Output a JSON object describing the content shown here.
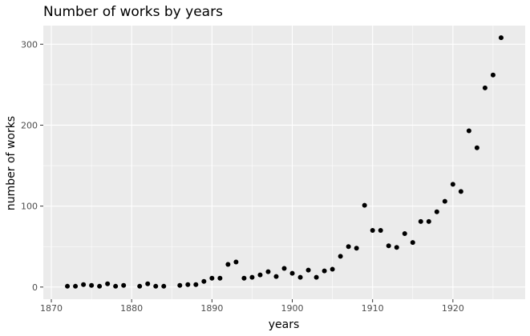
{
  "chart_data": {
    "type": "scatter",
    "title": "Number of works by years",
    "xlabel": "years",
    "ylabel": "number of works",
    "xlim": [
      1869,
      1929
    ],
    "ylim": [
      -15,
      323
    ],
    "x_ticks": [
      1870,
      1880,
      1890,
      1900,
      1910,
      1920
    ],
    "y_ticks": [
      0,
      100,
      200,
      300
    ],
    "x_tick_labels": [
      "1870",
      "1880",
      "1890",
      "1900",
      "1910",
      "1920"
    ],
    "y_tick_labels": [
      "0",
      "100",
      "200",
      "300"
    ],
    "grid": true,
    "legend": "none",
    "colors": {
      "panel": "#ebebeb",
      "grid": "#ffffff",
      "point": "#000000"
    },
    "points": [
      {
        "x": 1872,
        "y": 1
      },
      {
        "x": 1873,
        "y": 1
      },
      {
        "x": 1874,
        "y": 3
      },
      {
        "x": 1875,
        "y": 2
      },
      {
        "x": 1876,
        "y": 1
      },
      {
        "x": 1877,
        "y": 4
      },
      {
        "x": 1878,
        "y": 1
      },
      {
        "x": 1879,
        "y": 2
      },
      {
        "x": 1881,
        "y": 1
      },
      {
        "x": 1882,
        "y": 4
      },
      {
        "x": 1883,
        "y": 1
      },
      {
        "x": 1884,
        "y": 1
      },
      {
        "x": 1886,
        "y": 2
      },
      {
        "x": 1887,
        "y": 3
      },
      {
        "x": 1888,
        "y": 3
      },
      {
        "x": 1889,
        "y": 7
      },
      {
        "x": 1890,
        "y": 11
      },
      {
        "x": 1891,
        "y": 11
      },
      {
        "x": 1892,
        "y": 28
      },
      {
        "x": 1893,
        "y": 31
      },
      {
        "x": 1894,
        "y": 11
      },
      {
        "x": 1895,
        "y": 12
      },
      {
        "x": 1896,
        "y": 15
      },
      {
        "x": 1897,
        "y": 19
      },
      {
        "x": 1898,
        "y": 13
      },
      {
        "x": 1899,
        "y": 23
      },
      {
        "x": 1900,
        "y": 17
      },
      {
        "x": 1901,
        "y": 12
      },
      {
        "x": 1902,
        "y": 21
      },
      {
        "x": 1903,
        "y": 12
      },
      {
        "x": 1904,
        "y": 20
      },
      {
        "x": 1905,
        "y": 22
      },
      {
        "x": 1906,
        "y": 38
      },
      {
        "x": 1907,
        "y": 50
      },
      {
        "x": 1908,
        "y": 48
      },
      {
        "x": 1909,
        "y": 101
      },
      {
        "x": 1910,
        "y": 70
      },
      {
        "x": 1911,
        "y": 70
      },
      {
        "x": 1912,
        "y": 51
      },
      {
        "x": 1913,
        "y": 49
      },
      {
        "x": 1914,
        "y": 66
      },
      {
        "x": 1915,
        "y": 55
      },
      {
        "x": 1916,
        "y": 81
      },
      {
        "x": 1917,
        "y": 81
      },
      {
        "x": 1918,
        "y": 93
      },
      {
        "x": 1919,
        "y": 106
      },
      {
        "x": 1920,
        "y": 127
      },
      {
        "x": 1921,
        "y": 118
      },
      {
        "x": 1922,
        "y": 193
      },
      {
        "x": 1923,
        "y": 172
      },
      {
        "x": 1924,
        "y": 246
      },
      {
        "x": 1925,
        "y": 262
      },
      {
        "x": 1926,
        "y": 308
      }
    ]
  }
}
